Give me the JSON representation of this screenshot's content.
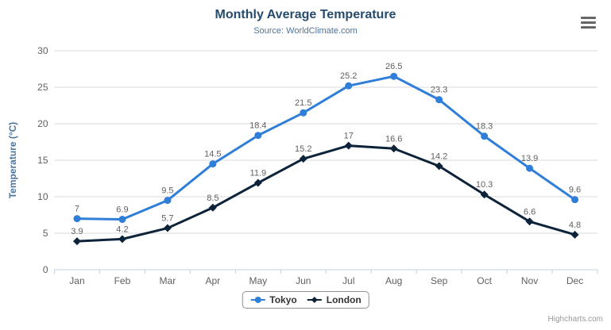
{
  "header": {
    "title": "Monthly Average Temperature",
    "subtitle": "Source: WorldClimate.com"
  },
  "export_menu": {
    "icon": "hamburger-menu-icon"
  },
  "credits": {
    "label": "Highcharts.com"
  },
  "colors": {
    "title": "#274b6d",
    "subtitle": "#4d759e",
    "yaxis_title": "#4d759e",
    "tick_label": "#606060",
    "data_label": "#606060",
    "grid_line": "#d8d8d8",
    "axis_line": "#c0d0e0",
    "legend_border": "#909090",
    "legend_text": "#333333",
    "credits_text": "#999999",
    "menu_icon": "#666666",
    "background": "#ffffff"
  },
  "chart_data": {
    "type": "line",
    "title": "Monthly Average Temperature",
    "subtitle": "Source: WorldClimate.com",
    "categories": [
      "Jan",
      "Feb",
      "Mar",
      "Apr",
      "May",
      "Jun",
      "Jul",
      "Aug",
      "Sep",
      "Oct",
      "Nov",
      "Dec"
    ],
    "xlabel": "",
    "ylabel": "Temperature (°C)",
    "ylim": [
      0,
      30
    ],
    "ytick_interval": 5,
    "yticks": [
      0,
      5,
      10,
      15,
      20,
      25,
      30
    ],
    "grid": true,
    "legend_position": "bottom",
    "data_labels": true,
    "series": [
      {
        "name": "Tokyo",
        "color": "#2f7ed8",
        "marker": "circle",
        "values": [
          7,
          6.9,
          9.5,
          14.5,
          18.4,
          21.5,
          25.2,
          26.5,
          23.3,
          18.3,
          13.9,
          9.6
        ]
      },
      {
        "name": "London",
        "color": "#0d233a",
        "marker": "diamond",
        "values": [
          3.9,
          4.2,
          5.7,
          8.5,
          11.9,
          15.2,
          17,
          16.6,
          14.2,
          10.3,
          6.6,
          4.8
        ]
      }
    ]
  }
}
